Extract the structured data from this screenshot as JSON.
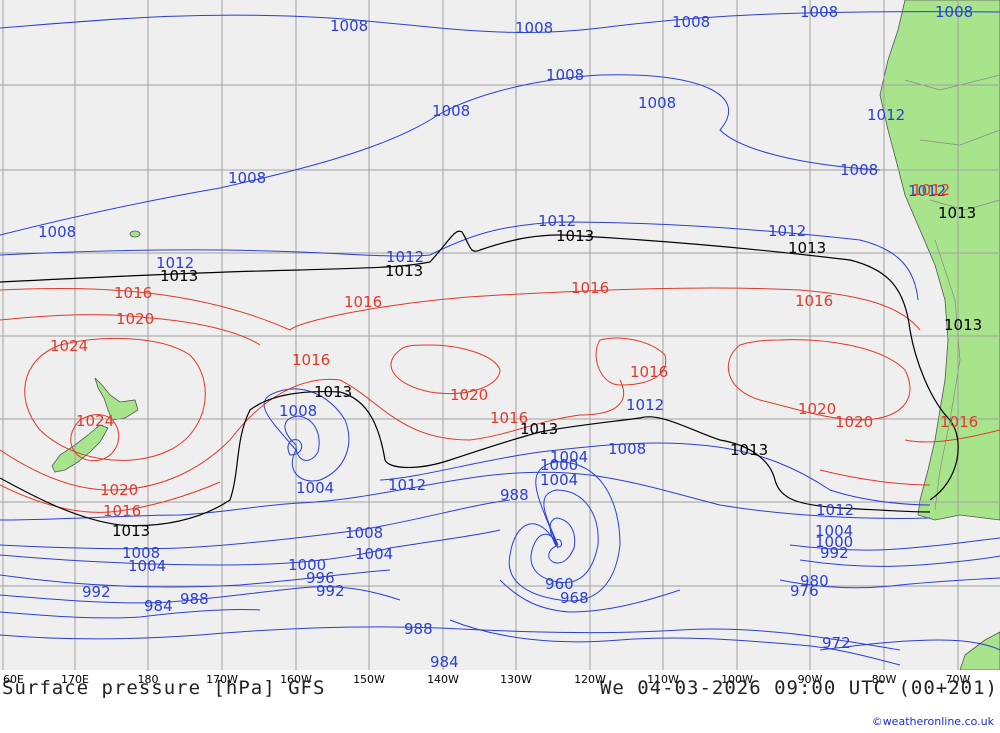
{
  "title": "Surface pressure [hPa] GFS",
  "valid_time": "We 04-03-2026 09:00 UTC (00+201)",
  "credit": "©weatheronline.co.uk",
  "colors": {
    "ocean": "#efefef",
    "land": "#a8e48c",
    "grid": "#a0a0a0",
    "low": "#2b3fd6",
    "high": "#e03a2a",
    "standard": "#000000",
    "credit": "#1a2bd0"
  },
  "lon_labels": [
    "60E",
    "170E",
    "180",
    "170W",
    "160W",
    "150W",
    "140W",
    "130W",
    "120W",
    "110W",
    "100W",
    "90W",
    "80W",
    "70W"
  ],
  "isobar_labels": {
    "blue": [
      "1008",
      "1008",
      "1008",
      "1008",
      "1008",
      "1008",
      "1008",
      "1008",
      "1008",
      "1008",
      "1012",
      "1012",
      "1012",
      "1012",
      "1012",
      "1012",
      "1008",
      "1004",
      "1012",
      "1008",
      "1004",
      "1008",
      "1004",
      "1012",
      "1004",
      "1000",
      "992",
      "988",
      "988",
      "1008",
      "1004",
      "1000",
      "996",
      "992",
      "984",
      "988",
      "984",
      "980",
      "976",
      "972",
      "968",
      "960",
      "992",
      "1000",
      "1004",
      "1008",
      "1012"
    ],
    "red": [
      "1016",
      "1020",
      "1024",
      "1024",
      "1020",
      "1016",
      "1016",
      "1016",
      "1016",
      "1020",
      "1016",
      "1016",
      "1016",
      "1020",
      "1020",
      "1016",
      "1012"
    ],
    "black": [
      "1013",
      "1013",
      "1013",
      "1013",
      "1013",
      "1013",
      "1013",
      "1013",
      "1013",
      "1013"
    ]
  }
}
